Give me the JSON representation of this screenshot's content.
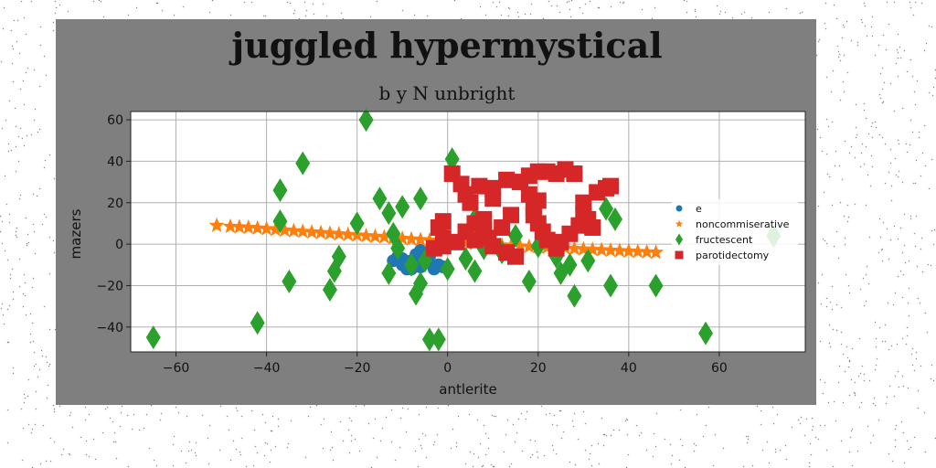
{
  "chart_data": {
    "type": "scatter",
    "title": "juggled hypermystical",
    "subtitle": "b y N unbright",
    "xlabel": "antlerite",
    "ylabel": "mazers",
    "xlim": [
      -70,
      79
    ],
    "ylim": [
      -52,
      64
    ],
    "xticks": [
      -60,
      -40,
      -20,
      0,
      20,
      40,
      60
    ],
    "yticks": [
      -40,
      -20,
      0,
      20,
      40,
      60
    ],
    "grid": true,
    "legend_placement": "right",
    "series": [
      {
        "name": "e",
        "marker": "circle",
        "color": "#1f77b4",
        "points": [
          [
            -11,
            -6
          ],
          [
            -10,
            -10
          ],
          [
            -9,
            -12
          ],
          [
            -8,
            -8
          ],
          [
            -7,
            -5
          ],
          [
            -6,
            -11
          ],
          [
            -5,
            -7
          ],
          [
            -4,
            -9
          ],
          [
            -3,
            -12
          ],
          [
            -2,
            -10
          ],
          [
            -1,
            -11
          ],
          [
            -6,
            -3
          ],
          [
            -10,
            -7
          ],
          [
            -12,
            -8
          ],
          [
            -8,
            -12
          ],
          [
            -4,
            -6
          ]
        ]
      },
      {
        "name": "noncommiserative",
        "marker": "star",
        "color": "#ff7f0e",
        "points": [
          [
            -51,
            9
          ],
          [
            -48,
            8.5
          ],
          [
            -46,
            8.3
          ],
          [
            -44,
            8
          ],
          [
            -42,
            7.7
          ],
          [
            -40,
            7.4
          ],
          [
            -38,
            7
          ],
          [
            -36,
            6.7
          ],
          [
            -34,
            6.4
          ],
          [
            -32,
            6.1
          ],
          [
            -30,
            5.8
          ],
          [
            -28,
            5.5
          ],
          [
            -26,
            5.2
          ],
          [
            -24,
            4.9
          ],
          [
            -22,
            4.6
          ],
          [
            -20,
            4.3
          ],
          [
            -18,
            4
          ],
          [
            -16,
            3.7
          ],
          [
            -14,
            3.4
          ],
          [
            -12,
            3
          ],
          [
            -10,
            2.7
          ],
          [
            -8,
            2.4
          ],
          [
            -6,
            2.1
          ],
          [
            -4,
            1.8
          ],
          [
            -2,
            1.5
          ],
          [
            0,
            1.2
          ],
          [
            2,
            0.9
          ],
          [
            4,
            0.6
          ],
          [
            6,
            0.3
          ],
          [
            8,
            0
          ],
          [
            10,
            -0.3
          ],
          [
            12,
            -0.5
          ],
          [
            14,
            -0.8
          ],
          [
            16,
            -1
          ],
          [
            18,
            -1.2
          ],
          [
            20,
            -1.4
          ],
          [
            22,
            -1.6
          ],
          [
            24,
            -1.8
          ],
          [
            26,
            -2
          ],
          [
            28,
            -2.2
          ],
          [
            30,
            -2.4
          ],
          [
            32,
            -2.6
          ],
          [
            34,
            -2.8
          ],
          [
            36,
            -3
          ],
          [
            38,
            -3.2
          ],
          [
            40,
            -3.4
          ],
          [
            42,
            -3.6
          ],
          [
            44,
            -3.8
          ],
          [
            46,
            -4
          ]
        ]
      },
      {
        "name": "fructescent",
        "marker": "diamond",
        "color": "#2ca02c",
        "points": [
          [
            -65,
            -45
          ],
          [
            -42,
            -38
          ],
          [
            -37,
            26
          ],
          [
            -37,
            11
          ],
          [
            -35,
            -18
          ],
          [
            -32,
            39
          ],
          [
            -26,
            -22
          ],
          [
            -25,
            -13
          ],
          [
            -24,
            -6
          ],
          [
            -20,
            10
          ],
          [
            -18,
            60
          ],
          [
            -15,
            22
          ],
          [
            -13,
            15
          ],
          [
            -13,
            -14
          ],
          [
            -12,
            5
          ],
          [
            -11,
            -2
          ],
          [
            -10,
            18
          ],
          [
            -8,
            -10
          ],
          [
            -7,
            -24
          ],
          [
            -6,
            -19
          ],
          [
            -5,
            -8
          ],
          [
            -6,
            22
          ],
          [
            -4,
            -46
          ],
          [
            -2,
            -46
          ],
          [
            0,
            -12
          ],
          [
            1,
            41
          ],
          [
            4,
            -7
          ],
          [
            6,
            12
          ],
          [
            6,
            -13
          ],
          [
            8,
            -2
          ],
          [
            12,
            -4
          ],
          [
            15,
            4
          ],
          [
            18,
            -18
          ],
          [
            20,
            -1
          ],
          [
            24,
            -6
          ],
          [
            25,
            -14
          ],
          [
            27,
            -10
          ],
          [
            28,
            -25
          ],
          [
            31,
            -8
          ],
          [
            35,
            17
          ],
          [
            36,
            -20
          ],
          [
            37,
            12
          ],
          [
            46,
            -20
          ],
          [
            57,
            -43
          ],
          [
            72,
            4
          ]
        ]
      },
      {
        "name": "parotidectomy",
        "marker": "square",
        "color": "#d62728",
        "points": [
          [
            1,
            34
          ],
          [
            3,
            29
          ],
          [
            4,
            24
          ],
          [
            5,
            20
          ],
          [
            6,
            10
          ],
          [
            8,
            7
          ],
          [
            9,
            3
          ],
          [
            10,
            -1
          ],
          [
            6,
            2
          ],
          [
            4,
            6
          ],
          [
            2,
            1
          ],
          [
            -1,
            -1
          ],
          [
            -3,
            -2
          ],
          [
            -1,
            3
          ],
          [
            -2,
            8
          ],
          [
            -1,
            11
          ],
          [
            7,
            28
          ],
          [
            10,
            27
          ],
          [
            13,
            31
          ],
          [
            16,
            30
          ],
          [
            18,
            33
          ],
          [
            20,
            35
          ],
          [
            22,
            35
          ],
          [
            24,
            34
          ],
          [
            26,
            36
          ],
          [
            28,
            34
          ],
          [
            20,
            21
          ],
          [
            19,
            18
          ],
          [
            19,
            14
          ],
          [
            20,
            10
          ],
          [
            21,
            6
          ],
          [
            22,
            2
          ],
          [
            24,
            -2
          ],
          [
            25,
            1
          ],
          [
            27,
            5
          ],
          [
            29,
            9
          ],
          [
            30,
            14
          ],
          [
            31,
            12
          ],
          [
            32,
            8
          ],
          [
            30,
            20
          ],
          [
            33,
            25
          ],
          [
            35,
            27
          ],
          [
            36,
            28
          ],
          [
            13,
            -4
          ],
          [
            15,
            -6
          ],
          [
            12,
            8
          ],
          [
            14,
            14
          ],
          [
            18,
            24
          ],
          [
            10,
            22
          ],
          [
            8,
            12
          ]
        ]
      }
    ]
  }
}
